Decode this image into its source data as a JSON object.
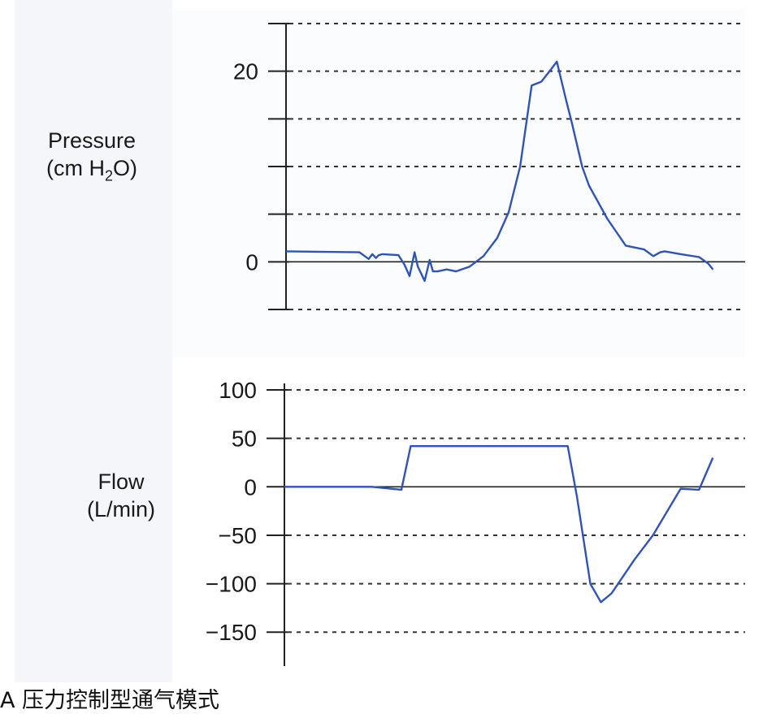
{
  "caption": "A  压力控制型通气模式",
  "chart_data": [
    {
      "type": "line",
      "ylabel_line1": "Pressure",
      "ylabel_line2": "(cm H",
      "ylabel_sub": "2",
      "ylabel_tail": "O)",
      "yticks": [
        -5,
        0,
        5,
        10,
        15,
        20,
        25
      ],
      "ytick_labels": [
        {
          "value": 0,
          "label": "0"
        },
        {
          "value": 20,
          "label": "20"
        }
      ],
      "ylim": [
        -5,
        25
      ],
      "xlim": [
        0,
        100
      ],
      "grid": true,
      "series": [
        {
          "color": "#2f54b5",
          "x": [
            0,
            16,
            18,
            18.8,
            19.6,
            20.2,
            21,
            24.5,
            25.8,
            26.9,
            28,
            28.7,
            30.2,
            31.3,
            32,
            33,
            35,
            37,
            40,
            43,
            46,
            48.5,
            51,
            53.5,
            55.6,
            57.4,
            59,
            61,
            62.3,
            64.5,
            66,
            70,
            74,
            78,
            80,
            81.5,
            82.5,
            86,
            90,
            92,
            93
          ],
          "y": [
            1.1,
            1.0,
            0.3,
            0.8,
            0.4,
            0.7,
            0.8,
            0.7,
            -0.3,
            -1.5,
            1.0,
            -0.5,
            -2.0,
            0.2,
            -1.0,
            -1.0,
            -0.8,
            -1.0,
            -0.5,
            0.6,
            2.5,
            5.2,
            10.0,
            18.5,
            18.9,
            20.0,
            21.0,
            17.0,
            14.5,
            10.0,
            8.0,
            4.5,
            1.7,
            1.3,
            0.6,
            1.0,
            1.1,
            0.8,
            0.5,
            -0.2,
            -0.8
          ]
        }
      ]
    },
    {
      "type": "line",
      "ylabel_line1": "Flow",
      "ylabel_line2": "(L/min)",
      "yticks": [
        100,
        50,
        0,
        -50,
        -100,
        -150
      ],
      "ytick_labels": [
        {
          "value": 100,
          "label": "100"
        },
        {
          "value": 50,
          "label": "50"
        },
        {
          "value": 0,
          "label": "0"
        },
        {
          "value": -50,
          "label": "−50"
        },
        {
          "value": -100,
          "label": "−100"
        },
        {
          "value": -150,
          "label": "−150"
        }
      ],
      "ylim": [
        -185,
        100
      ],
      "xlim": [
        0,
        100
      ],
      "grid": true,
      "series": [
        {
          "color": "#2f54b5",
          "x": [
            0,
            19,
            25.4,
            27.4,
            61.5,
            63.5,
            66.4,
            68.7,
            71,
            76,
            80,
            86,
            90,
            93
          ],
          "y": [
            0,
            0,
            -3,
            42,
            42,
            -10,
            -100,
            -119,
            -110,
            -75,
            -50,
            -2,
            -3,
            30
          ]
        }
      ]
    }
  ]
}
